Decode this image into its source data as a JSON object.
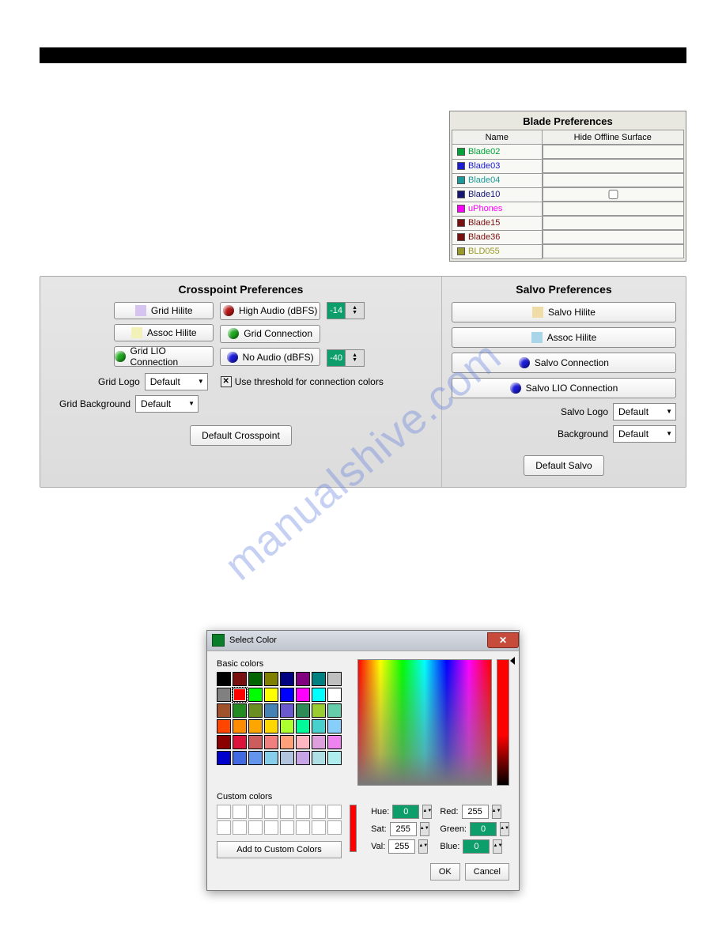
{
  "blade_prefs": {
    "title": "Blade Preferences",
    "columns": [
      "Name",
      "Hide Offline Surface"
    ],
    "rows": [
      {
        "name": "Blade02",
        "color": "#00a23a",
        "text_color": "#00a23a",
        "checkbox": false,
        "show_checkbox": false
      },
      {
        "name": "Blade03",
        "color": "#1b1bd8",
        "text_color": "#1b1bd8",
        "checkbox": false,
        "show_checkbox": false
      },
      {
        "name": "Blade04",
        "color": "#1a9a9a",
        "text_color": "#1a9a9a",
        "checkbox": false,
        "show_checkbox": false
      },
      {
        "name": "Blade10",
        "color": "#151574",
        "text_color": "#151574",
        "checkbox": false,
        "show_checkbox": true
      },
      {
        "name": "uPhones",
        "color": "#ff00ff",
        "text_color": "#ff00ff",
        "checkbox": false,
        "show_checkbox": false
      },
      {
        "name": "Blade15",
        "color": "#7a0f0f",
        "text_color": "#7a0f0f",
        "checkbox": false,
        "show_checkbox": false
      },
      {
        "name": "Blade36",
        "color": "#7a0f0f",
        "text_color": "#7a0f0f",
        "checkbox": false,
        "show_checkbox": false
      },
      {
        "name": "BLD055",
        "color": "#9a9a2a",
        "text_color": "#9a9a2a",
        "checkbox": false,
        "show_checkbox": false
      }
    ]
  },
  "crosspoint": {
    "heading": "Crosspoint Preferences",
    "grid_hilite_label": "Grid Hilite",
    "grid_hilite_color": "#d6c4f0",
    "assoc_hilite_label": "Assoc Hilite",
    "assoc_hilite_color": "#f2f2b8",
    "grid_lio_label": "Grid LIO Connection",
    "grid_lio_color": "#1fa81f",
    "high_audio_label": "High Audio (dBFS)",
    "high_audio_color": "#b51717",
    "high_audio_value": "-14",
    "grid_connection_label": "Grid Connection",
    "grid_connection_color": "#1fa81f",
    "no_audio_label": "No Audio (dBFS)",
    "no_audio_color": "#1b1bd8",
    "no_audio_value": "-40",
    "grid_logo_label": "Grid Logo",
    "grid_logo_value": "Default",
    "grid_background_label": "Grid Background",
    "grid_background_value": "Default",
    "use_threshold_label": "Use threshold for connection colors",
    "use_threshold_checked": "✕",
    "default_button": "Default Crosspoint"
  },
  "salvo": {
    "heading": "Salvo Preferences",
    "salvo_hilite_label": "Salvo Hilite",
    "salvo_hilite_color": "#f0dca6",
    "assoc_hilite_label": "Assoc Hilite",
    "assoc_hilite_color": "#a8d6e8",
    "salvo_connection_label": "Salvo Connection",
    "salvo_connection_color": "#1b1bd8",
    "salvo_lio_label": "Salvo LIO Connection",
    "salvo_lio_color": "#1b1bd8",
    "salvo_logo_label": "Salvo Logo",
    "salvo_logo_value": "Default",
    "background_label": "Background",
    "background_value": "Default",
    "default_button": "Default Salvo"
  },
  "color_dialog": {
    "title": "Select Color",
    "basic_colors_label": "Basic colors",
    "custom_colors_label": "Custom colors",
    "add_custom_label": "Add to Custom Colors",
    "ok_label": "OK",
    "cancel_label": "Cancel",
    "hue_label": "Hue:",
    "sat_label": "Sat:",
    "val_label": "Val:",
    "red_label": "Red:",
    "green_label": "Green:",
    "blue_label": "Blue:",
    "hue_value": "0",
    "sat_value": "255",
    "val_value": "255",
    "red_value": "255",
    "green_value": "0",
    "blue_value": "0",
    "preview_color": "#ff0000",
    "basic_colors": [
      "#000000",
      "#7a0f0f",
      "#006400",
      "#808000",
      "#000080",
      "#800080",
      "#008080",
      "#c0c0c0",
      "#808080",
      "#ff0000",
      "#00ff00",
      "#ffff00",
      "#0000ff",
      "#ff00ff",
      "#00ffff",
      "#ffffff",
      "#a0522d",
      "#228b22",
      "#6b8e23",
      "#4682b4",
      "#6a5acd",
      "#2e8b57",
      "#9acd32",
      "#66cdaa",
      "#ff4500",
      "#ff8c00",
      "#ffa500",
      "#ffd700",
      "#adff2f",
      "#00fa9a",
      "#48d1cc",
      "#87cefa",
      "#8b0000",
      "#dc143c",
      "#cd5c5c",
      "#f08080",
      "#ffa07a",
      "#ffb6c1",
      "#dda0dd",
      "#ee82ee",
      "#0000cd",
      "#4169e1",
      "#6495ed",
      "#87ceeb",
      "#b0c4de",
      "#c6a4e6",
      "#b0e0e6",
      "#afeeee"
    ],
    "selected_index": 9
  },
  "watermark_text": "manualshive.com"
}
